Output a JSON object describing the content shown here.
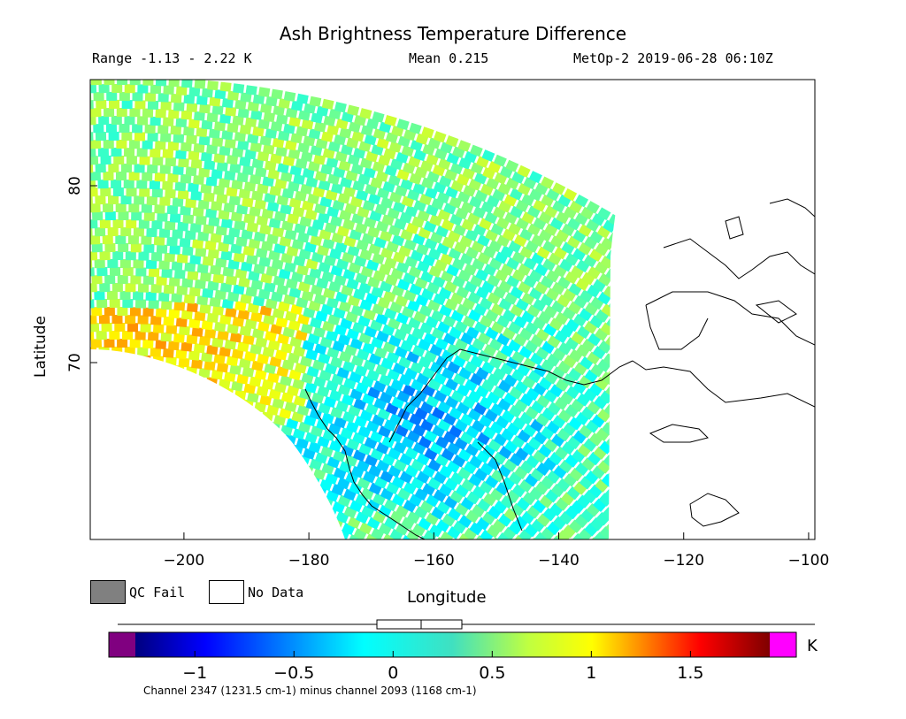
{
  "header": {
    "title": "Ash Brightness Temperature Difference",
    "range": "Range -1.13 - 2.22 K",
    "mean": "Mean 0.215",
    "satellite": "MetOp-2 2019-06-28 06:10Z"
  },
  "map": {
    "lon_range": [
      -215,
      -99
    ],
    "lat_range": [
      60,
      86
    ],
    "x_ticks": [
      -200,
      -180,
      -160,
      -140,
      -120,
      -100
    ],
    "x_tick_labels": [
      "−200",
      "−180",
      "−160",
      "−140",
      "−120",
      "−100"
    ],
    "y_ticks": [
      70,
      80
    ],
    "y_tick_labels": [
      "70",
      "80"
    ],
    "xlabel": "Longitude",
    "ylabel": "Latitude"
  },
  "legend": {
    "qc_label": "QC Fail",
    "nodata_label": "No Data",
    "qc_color": "#808080",
    "nodata_color": "#ffffff"
  },
  "colorbar": {
    "range": [
      -1.3,
      1.9
    ],
    "tick_values": [
      -1,
      -0.5,
      0,
      0.5,
      1,
      1.5
    ],
    "tick_labels": [
      "−1",
      "−0.5",
      "0",
      "0.5",
      "1",
      "1.5"
    ],
    "unit": "K",
    "under_color": "#800080",
    "over_color": "#ff00ff",
    "caption": "Channel 2347 (1231.5 cm-1) minus channel 2093 (1168 cm-1)"
  }
}
